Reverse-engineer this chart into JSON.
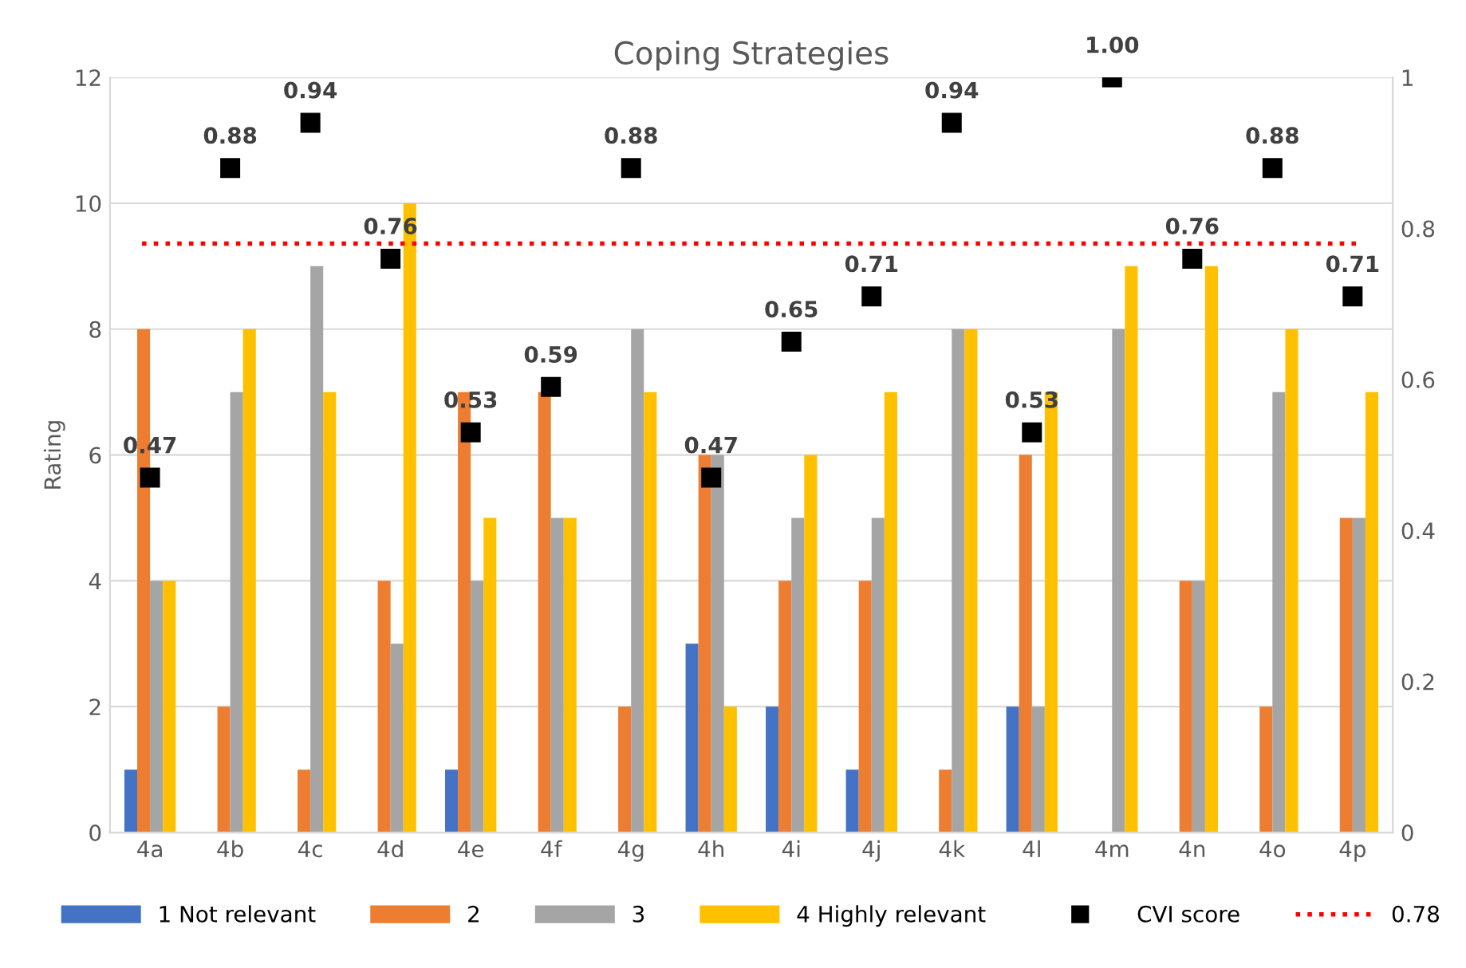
{
  "chart_data": {
    "type": "bar",
    "title": "Coping Strategies",
    "ylabel": "Rating",
    "categories": [
      "4a",
      "4b",
      "4c",
      "4d",
      "4e",
      "4f",
      "4g",
      "4h",
      "4i",
      "4j",
      "4k",
      "4l",
      "4m",
      "4n",
      "4o",
      "4p"
    ],
    "series": [
      {
        "name": "1 Not relevant",
        "color": "#4472c4",
        "values": [
          1,
          0,
          0,
          0,
          1,
          0,
          0,
          3,
          2,
          1,
          0,
          2,
          0,
          0,
          0,
          0
        ]
      },
      {
        "name": "2",
        "color": "#ed7d31",
        "values": [
          8,
          2,
          1,
          4,
          7,
          7,
          2,
          6,
          4,
          4,
          1,
          6,
          0,
          4,
          2,
          5
        ]
      },
      {
        "name": "3",
        "color": "#a5a5a5",
        "values": [
          4,
          7,
          9,
          3,
          4,
          5,
          8,
          6,
          5,
          5,
          8,
          2,
          8,
          4,
          7,
          5
        ]
      },
      {
        "name": "4 Highly relevant",
        "color": "#ffc000",
        "values": [
          4,
          8,
          7,
          10,
          5,
          5,
          7,
          2,
          6,
          7,
          8,
          7,
          9,
          9,
          8,
          7
        ]
      },
      {
        "name": "CVI score",
        "type": "scatter",
        "axis": "y2",
        "marker": "square",
        "color": "#000000",
        "values": [
          0.47,
          0.88,
          0.94,
          0.76,
          0.53,
          0.59,
          0.88,
          0.47,
          0.65,
          0.71,
          0.94,
          0.53,
          1.0,
          0.76,
          0.88,
          0.71
        ],
        "value_labels": [
          "0.47",
          "0.88",
          "0.94",
          "0.76",
          "0.53",
          "0.59",
          "0.88",
          "0.47",
          "0.65",
          "0.71",
          "0.94",
          "0.53",
          "1.00",
          "0.76",
          "0.88",
          "0.71"
        ]
      }
    ],
    "ylim": [
      0,
      12
    ],
    "yticks": [
      0,
      2,
      4,
      6,
      8,
      10,
      12
    ],
    "y2lim": [
      0,
      1
    ],
    "y2ticks": [
      0,
      0.2,
      0.4,
      0.6,
      0.8,
      1
    ],
    "ref_lines": [
      {
        "axis": "y2",
        "value": 0.78,
        "label": "0.78",
        "color": "#ff0000",
        "line_style": "dotted"
      }
    ],
    "grid": "y",
    "legend": "bottom"
  }
}
